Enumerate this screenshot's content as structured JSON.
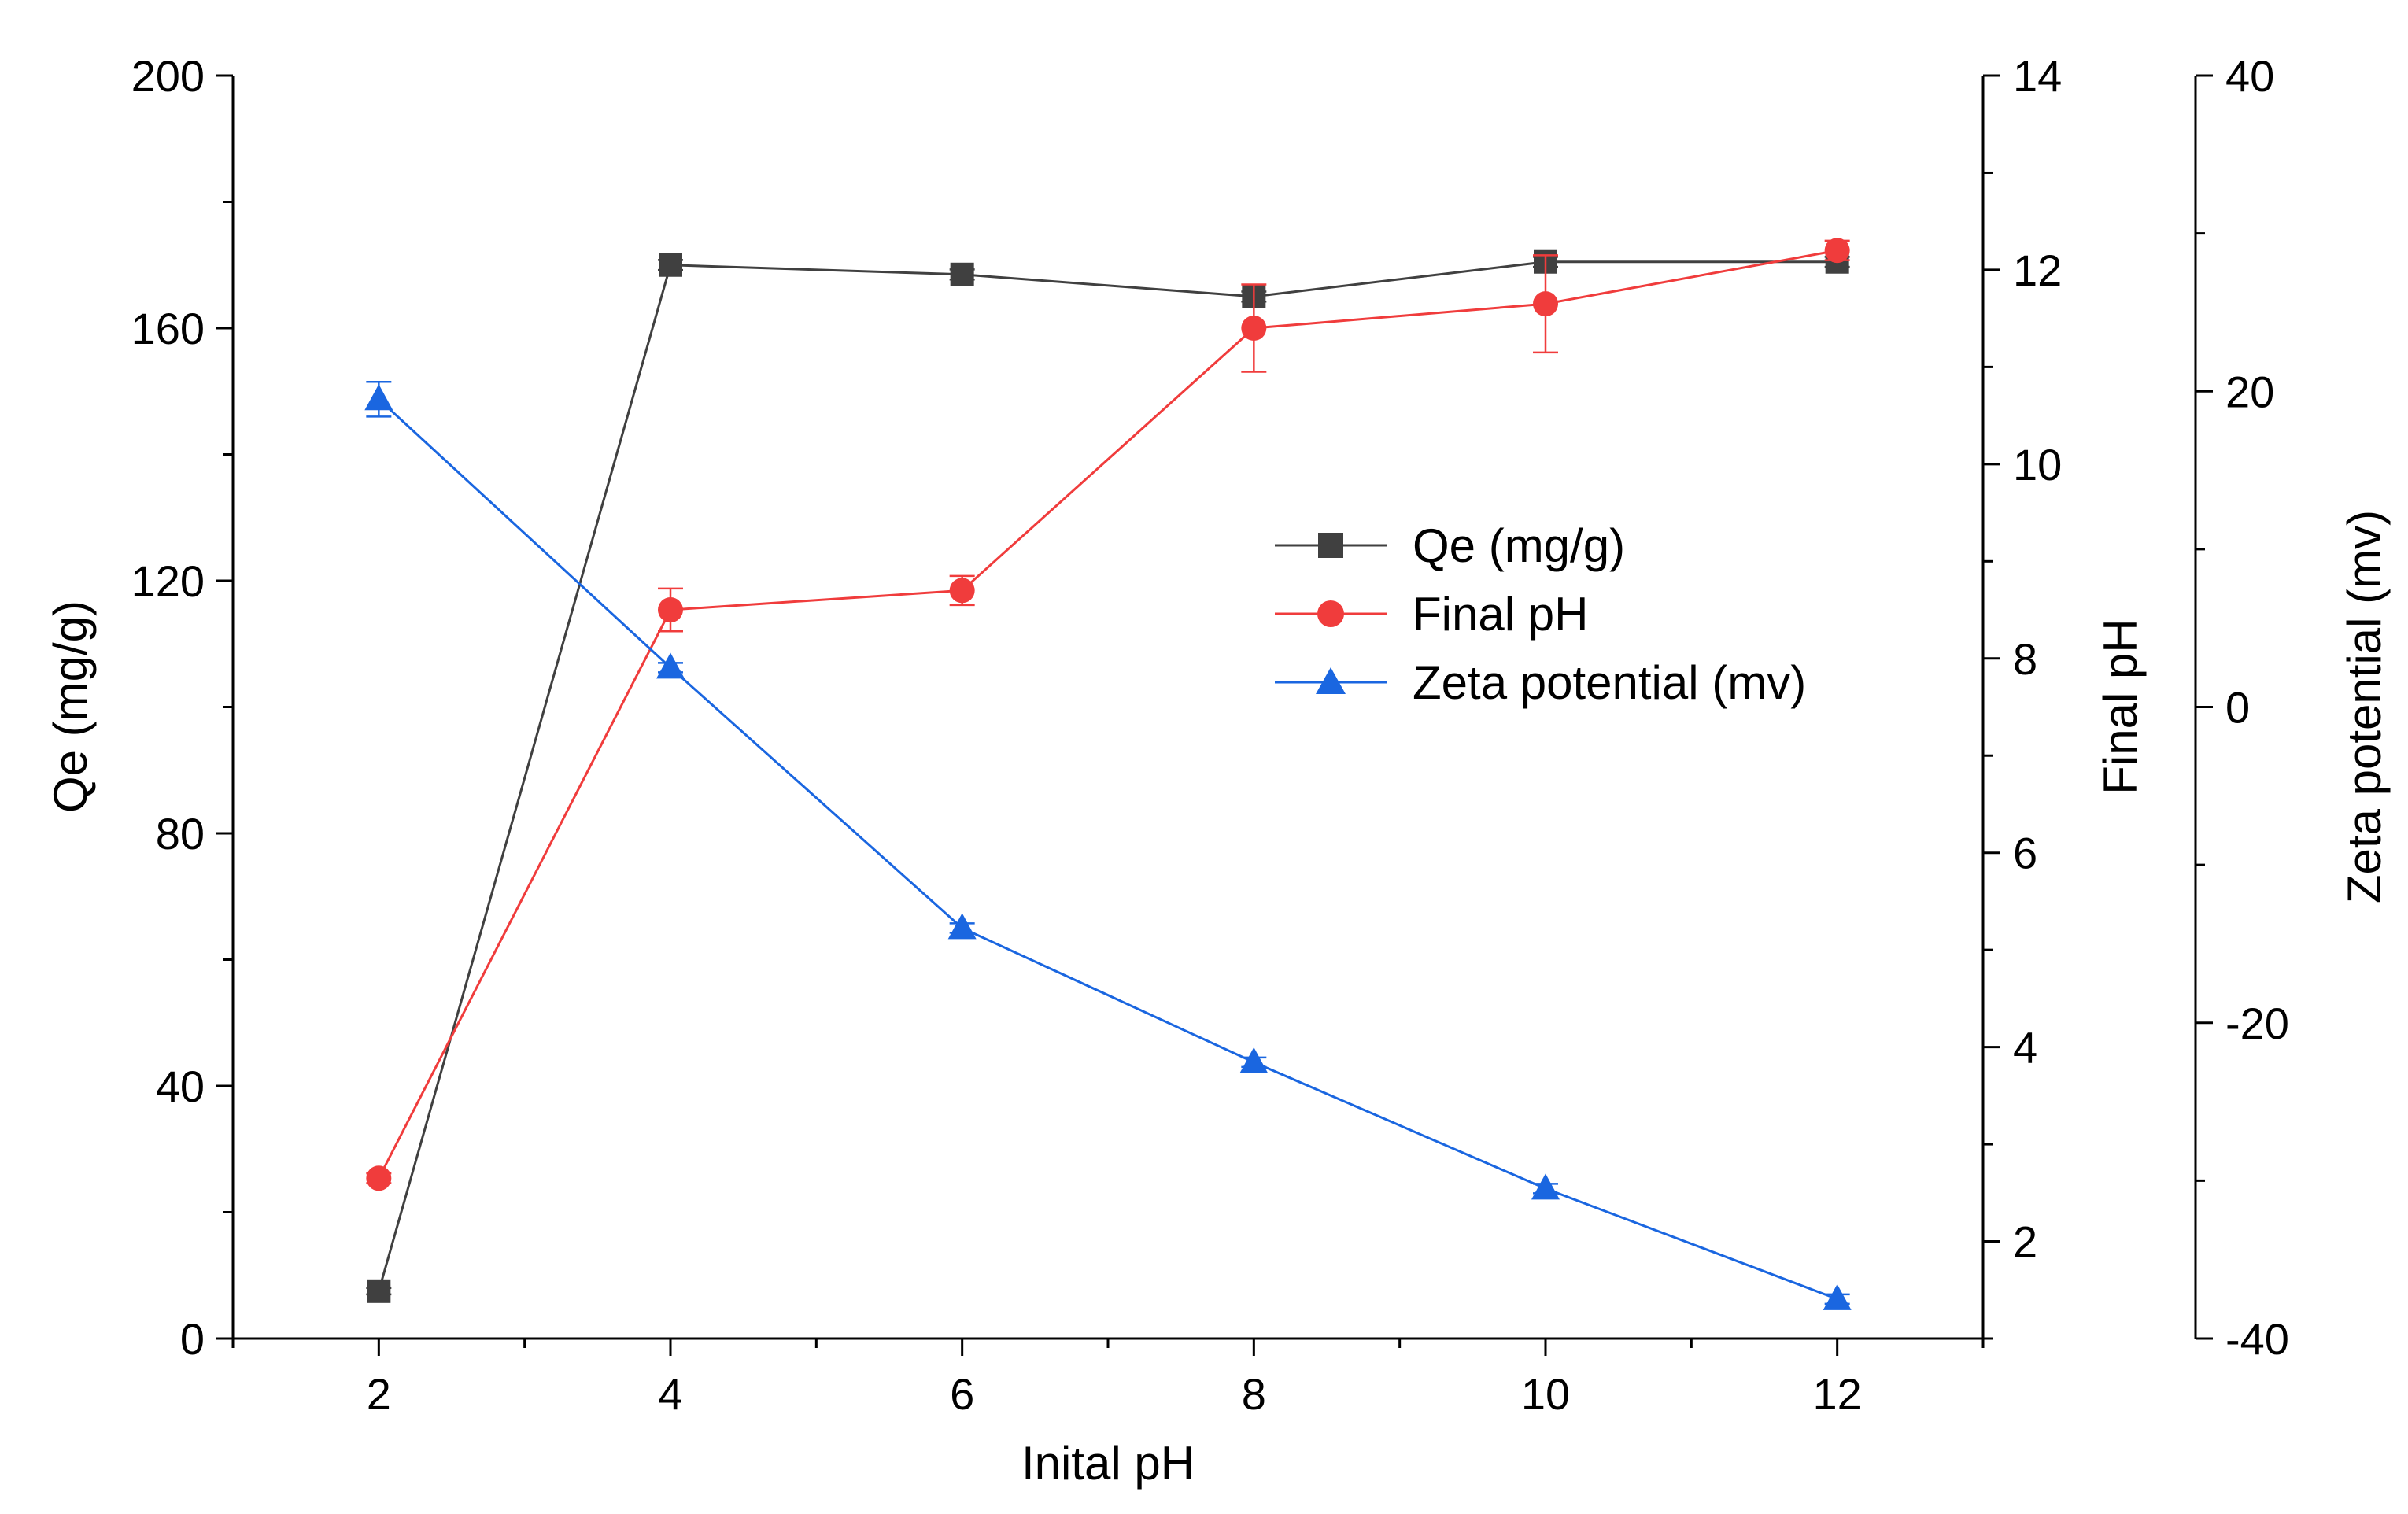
{
  "chart_data": {
    "type": "line",
    "title": "",
    "xlabel": "Inital pH",
    "x": [
      2,
      4,
      6,
      8,
      10,
      12
    ],
    "xlim": [
      1,
      13
    ],
    "xticks": [
      "2",
      "4",
      "6",
      "8",
      "10",
      "12"
    ],
    "axes": [
      {
        "id": "left",
        "label": "Qe (mg/g)",
        "lim": [
          0,
          200
        ],
        "ticks": [
          "0",
          "40",
          "80",
          "120",
          "160",
          "200"
        ]
      },
      {
        "id": "right1",
        "label": "Final pH",
        "lim": [
          1,
          14
        ],
        "ticks": [
          "2",
          "4",
          "6",
          "8",
          "10",
          "12",
          "14"
        ]
      },
      {
        "id": "right2",
        "label": "Zeta potential (mv)",
        "lim": [
          -40,
          40
        ],
        "ticks": [
          "-40",
          "-20",
          "0",
          "20",
          "40"
        ]
      }
    ],
    "series": [
      {
        "name": "Qe (mg/g)",
        "axis": "left",
        "color": "#404040",
        "marker": "square",
        "values": [
          7.5,
          170,
          168.5,
          165,
          170.5,
          170.5
        ],
        "errors": [
          0.5,
          0.8,
          0.8,
          0.8,
          0.8,
          0.8
        ]
      },
      {
        "name": "Final pH",
        "axis": "right1",
        "color": "#f03c3c",
        "marker": "circle",
        "values": [
          2.65,
          8.5,
          8.7,
          11.4,
          11.65,
          12.2
        ],
        "errors": [
          0.05,
          0.22,
          0.15,
          0.45,
          0.5,
          0.1
        ]
      },
      {
        "name": "Zeta potential (mv)",
        "axis": "right2",
        "color": "#1a66e0",
        "marker": "triangle",
        "values": [
          19.5,
          2.5,
          -14,
          -22.5,
          -30.5,
          -37.5
        ],
        "errors": [
          1.1,
          0.3,
          0.3,
          0.3,
          0.3,
          0.3
        ]
      }
    ],
    "legend": "center-right"
  }
}
